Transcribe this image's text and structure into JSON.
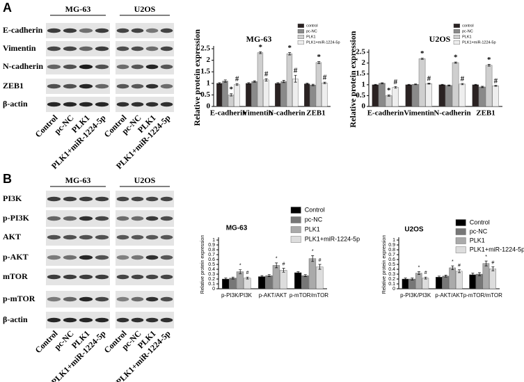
{
  "panels": [
    {
      "letter": "A",
      "groups": [
        "MG-63",
        "U2OS"
      ],
      "rows": [
        "E-cadherin",
        "Vimentin",
        "N-cadherin",
        "ZEB1",
        "β-actin"
      ],
      "lanes": [
        "Control",
        "pc-NC",
        "PLK1",
        "PLK1+miR-1224-5p"
      ]
    },
    {
      "letter": "B",
      "groups": [
        "MG-63",
        "U2OS"
      ],
      "rows": [
        "PI3K",
        "p-PI3K",
        "AKT",
        "p-AKT",
        "mTOR",
        "p-mTOR",
        "β-actin"
      ],
      "lanes": [
        "Control",
        "pc-NC",
        "PLK1",
        "PLK1+miR-1224-5p"
      ]
    }
  ],
  "chart_data": [
    {
      "type": "bar",
      "title": "MG-63",
      "y_label": "Relative protein expression",
      "categories": [
        "E-cadherin",
        "Vimentin",
        "N-cadherin",
        "ZEB1"
      ],
      "series": [
        {
          "name": "control",
          "color": "#2a2222",
          "values": [
            1.0,
            1.0,
            1.0,
            0.98
          ],
          "errors": [
            0.03,
            0.03,
            0.03,
            0.03
          ]
        },
        {
          "name": "pc-NC",
          "color": "#8a8a8a",
          "values": [
            1.1,
            1.08,
            1.08,
            0.93
          ],
          "errors": [
            0.05,
            0.03,
            0.05,
            0.03
          ]
        },
        {
          "name": "PLK1",
          "color": "#cfcfcf",
          "values": [
            0.5,
            2.33,
            2.28,
            1.9
          ],
          "errors": [
            0.05,
            0.04,
            0.05,
            0.04
          ],
          "markers": [
            "*",
            "*",
            "*",
            "*"
          ]
        },
        {
          "name": "PLK1+miR-1224-5p",
          "color": "#eeeeee",
          "values": [
            0.95,
            1.15,
            1.2,
            1.02
          ],
          "errors": [
            0.04,
            0.05,
            0.15,
            0.03
          ],
          "markers": [
            "#",
            "#",
            "#",
            "#"
          ]
        }
      ],
      "ylim": [
        0,
        2.5
      ],
      "yticks": [
        0,
        0.5,
        1,
        1.5,
        2,
        2.5
      ],
      "legend": "top-right"
    },
    {
      "type": "bar",
      "title": "U2OS",
      "y_label": "Relative protein expression",
      "categories": [
        "E-cadherin",
        "Vimentin",
        "N-cadherin",
        "ZEB1"
      ],
      "series": [
        {
          "name": "control",
          "color": "#2a2222",
          "values": [
            1.0,
            1.0,
            1.0,
            1.0
          ],
          "errors": [
            0.02,
            0.02,
            0.02,
            0.02
          ]
        },
        {
          "name": "pc-NC",
          "color": "#8a8a8a",
          "values": [
            1.07,
            1.02,
            0.97,
            0.9
          ],
          "errors": [
            0.02,
            0.02,
            0.02,
            0.03
          ]
        },
        {
          "name": "PLK1",
          "color": "#cfcfcf",
          "values": [
            0.5,
            2.2,
            2.02,
            1.9
          ],
          "errors": [
            0.03,
            0.03,
            0.03,
            0.04
          ],
          "markers": [
            "*",
            "*",
            "*",
            "*"
          ]
        },
        {
          "name": "PLK1+miR-1224-5p",
          "color": "#eeeeee",
          "values": [
            0.88,
            1.05,
            1.03,
            0.95
          ],
          "errors": [
            0.04,
            0.02,
            0.03,
            0.02
          ],
          "markers": [
            "#",
            "#",
            "#",
            "#"
          ]
        }
      ],
      "ylim": [
        0,
        2.5
      ],
      "yticks": [
        0,
        0.5,
        1,
        1.5,
        2,
        2.5
      ],
      "legend": "top-right"
    },
    {
      "type": "bar",
      "title": "MG-63",
      "y_label": "Relative protein expression",
      "categories": [
        "p-PI3K/PI3K",
        "p-AKT/AKT",
        "p-mTOR/mTOR"
      ],
      "series": [
        {
          "name": "Control",
          "color": "#000000",
          "values": [
            0.2,
            0.25,
            0.33
          ],
          "errors": [
            0.02,
            0.02,
            0.02
          ]
        },
        {
          "name": "pc-NC",
          "color": "#777777",
          "values": [
            0.22,
            0.27,
            0.27
          ],
          "errors": [
            0.02,
            0.02,
            0.02
          ]
        },
        {
          "name": "PLK1",
          "color": "#aaaaaa",
          "values": [
            0.35,
            0.48,
            0.62
          ],
          "errors": [
            0.04,
            0.05,
            0.06
          ],
          "markers": [
            "*",
            "*",
            "*"
          ]
        },
        {
          "name": "PLK1+miR-1224-5p",
          "color": "#dddddd",
          "values": [
            0.22,
            0.38,
            0.45
          ],
          "errors": [
            0.02,
            0.04,
            0.05
          ],
          "markers": [
            "#",
            "#",
            "#"
          ]
        }
      ],
      "ylim": [
        0,
        1
      ],
      "yticks": [
        0,
        0.1,
        0.2,
        0.3,
        0.4,
        0.5,
        0.6,
        0.7,
        0.8,
        0.9,
        1
      ],
      "legend": "top"
    },
    {
      "type": "bar",
      "title": "U2OS",
      "y_label": "Relative protein expression",
      "categories": [
        "p-PI3K/PI3K",
        "p-AKT/AKT",
        "p-mTOR/mTOR"
      ],
      "series": [
        {
          "name": "Control",
          "color": "#000000",
          "values": [
            0.2,
            0.24,
            0.29
          ],
          "errors": [
            0.02,
            0.02,
            0.03
          ]
        },
        {
          "name": "pc-NC",
          "color": "#777777",
          "values": [
            0.2,
            0.26,
            0.3
          ],
          "errors": [
            0.02,
            0.02,
            0.03
          ]
        },
        {
          "name": "PLK1",
          "color": "#aaaaaa",
          "values": [
            0.32,
            0.43,
            0.52
          ],
          "errors": [
            0.03,
            0.04,
            0.05
          ],
          "markers": [
            "*",
            "*",
            "*"
          ]
        },
        {
          "name": "PLK1+miR-1224-5p",
          "color": "#dddddd",
          "values": [
            0.22,
            0.36,
            0.41
          ],
          "errors": [
            0.02,
            0.03,
            0.04
          ],
          "markers": [
            "#",
            "#",
            "#"
          ]
        }
      ],
      "ylim": [
        0,
        1
      ],
      "yticks": [
        0,
        0.1,
        0.2,
        0.3,
        0.4,
        0.5,
        0.6,
        0.7,
        0.8,
        0.9,
        1
      ],
      "legend": "top"
    }
  ]
}
